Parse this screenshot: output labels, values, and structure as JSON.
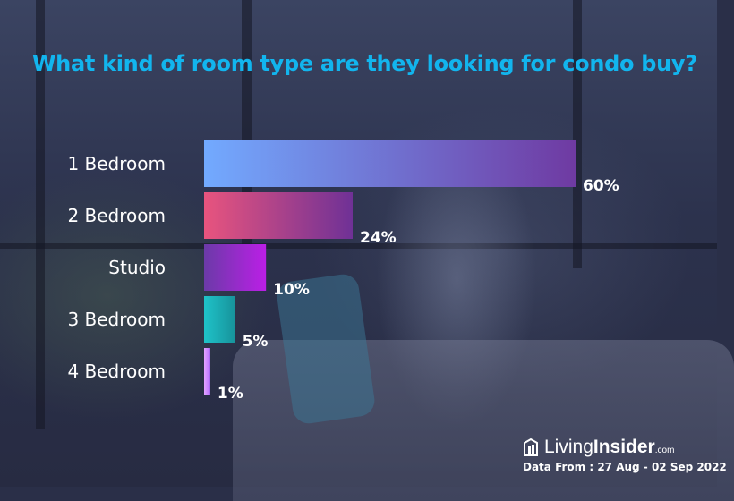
{
  "chart_data": {
    "type": "bar",
    "orientation": "horizontal",
    "title": "What kind of room type are they looking for condo buy?",
    "categories": [
      "1 Bedroom",
      "2 Bedroom",
      "Studio",
      "3 Bedroom",
      "4 Bedroom"
    ],
    "values": [
      60,
      24,
      10,
      5,
      1
    ],
    "value_labels": [
      "60%",
      "24%",
      "10%",
      "5%",
      "1%"
    ],
    "unit": "%",
    "grid": false,
    "legend": "none",
    "colors": [
      [
        "#72aaff",
        "#6f3aa2"
      ],
      [
        "#e8547e",
        "#6f3196"
      ],
      [
        "#6b3aa8",
        "#bb1fe6"
      ],
      [
        "#1fc3c9",
        "#17939b"
      ],
      [
        "#e3a3ff",
        "#b46bff"
      ]
    ]
  },
  "branding": {
    "logo_light": "Living",
    "logo_bold": "Insider",
    "logo_domain": ".com",
    "source": "Data From : 27 Aug - 02 Sep 2022"
  }
}
